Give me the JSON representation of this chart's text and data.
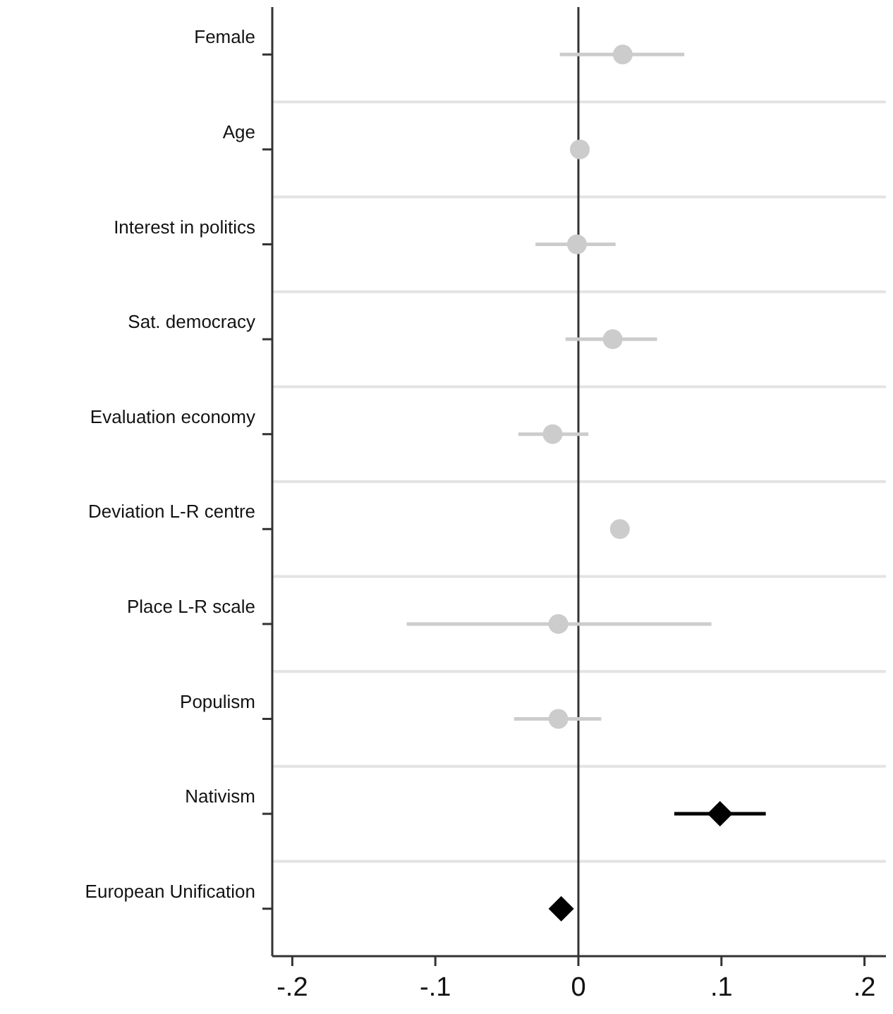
{
  "chart_data": {
    "type": "scatter",
    "orientation": "horizontal",
    "categories": [
      "Female",
      "Age",
      "Interest in politics",
      "Sat. democracy",
      "Evaluation economy",
      "Deviation L-R centre",
      "Place L-R scale",
      "Populism",
      "Nativism",
      "European Unification"
    ],
    "series": [
      {
        "color": "#cccccc",
        "marker": "circle",
        "values": [
          0.031,
          0.001,
          -0.001,
          0.024,
          -0.018,
          0.029,
          -0.014,
          -0.014,
          null,
          null
        ],
        "errors": [
          [
            -0.013,
            0.074
          ],
          null,
          [
            -0.03,
            0.026
          ],
          [
            -0.009,
            0.055
          ],
          [
            -0.042,
            0.007
          ],
          null,
          [
            -0.12,
            0.093
          ],
          [
            -0.045,
            0.016
          ],
          null,
          null
        ]
      },
      {
        "color": "#000000",
        "marker": "diamond",
        "values": [
          null,
          null,
          null,
          null,
          null,
          null,
          null,
          null,
          0.099,
          -0.012
        ],
        "errors": [
          null,
          null,
          null,
          null,
          null,
          null,
          null,
          null,
          [
            0.067,
            0.131
          ],
          null
        ]
      }
    ],
    "xlim": [
      -0.214,
      0.215
    ],
    "xticks": [
      {
        "value": -0.2,
        "label": "-.2"
      },
      {
        "value": -0.1,
        "label": "-.1"
      },
      0,
      {
        "value": 0.1,
        "label": ".1"
      },
      {
        "value": 0.2,
        "label": ".2"
      }
    ],
    "ref_lines": [
      {
        "axis": "x",
        "value": 0,
        "color": "#333333"
      }
    ],
    "grid": "y"
  }
}
